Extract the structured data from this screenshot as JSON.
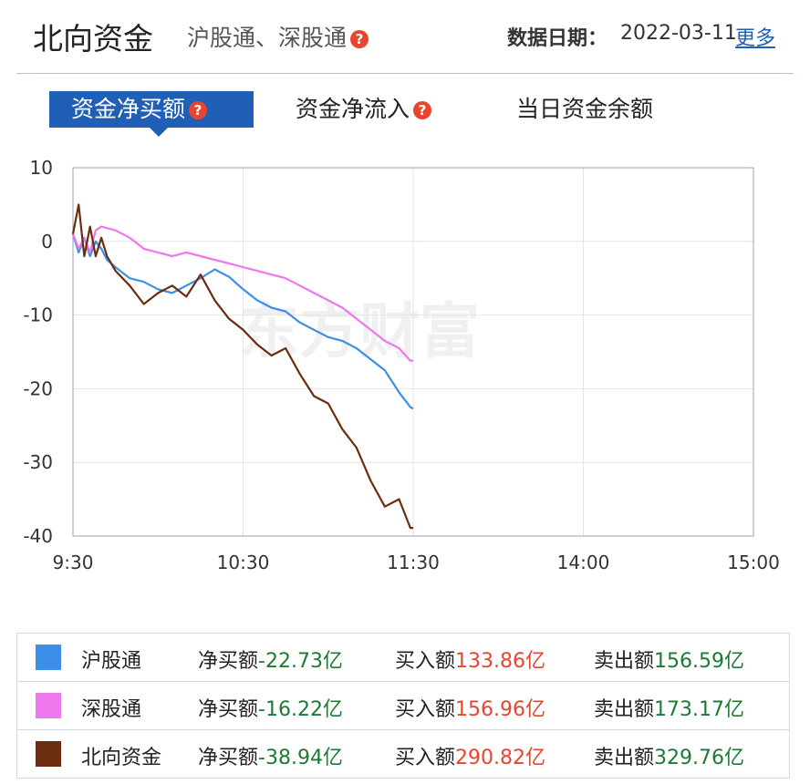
{
  "header": {
    "title": "北向资金",
    "subtitle": "沪股通、深股通",
    "help_mark": "?",
    "date_label": "数据日期：",
    "date_value": "2022-03-11",
    "more_label": "更多"
  },
  "tabs": [
    {
      "label": "资金净买额",
      "active": true
    },
    {
      "label": "资金净流入",
      "active": false
    },
    {
      "label": "当日资金余额",
      "active": false
    }
  ],
  "watermark": "东方财富",
  "chart_data": {
    "type": "line",
    "x_ticks": [
      "9:30",
      "10:30",
      "11:30",
      "14:00",
      "15:00"
    ],
    "y_ticks": [
      10,
      0,
      -10,
      -20,
      -30,
      -40
    ],
    "ylim": [
      -40,
      10
    ],
    "x_unit": "trading minutes since 9:30 (0–240)",
    "xlim": [
      0,
      240
    ],
    "grid": true,
    "series": [
      {
        "name": "沪股通",
        "color": "#3b8fe8",
        "x": [
          0,
          2,
          4,
          6,
          8,
          10,
          12,
          15,
          20,
          25,
          30,
          35,
          40,
          45,
          50,
          55,
          60,
          65,
          70,
          75,
          80,
          85,
          90,
          95,
          100,
          105,
          110,
          115,
          119,
          120
        ],
        "y": [
          1,
          -1.5,
          0.5,
          -2,
          0,
          -1,
          -2.5,
          -3.5,
          -5,
          -5.5,
          -6.5,
          -7,
          -6,
          -5,
          -3.8,
          -4.8,
          -6.5,
          -8,
          -9,
          -9.5,
          -11,
          -12,
          -13,
          -13.5,
          -14.5,
          -16,
          -17.5,
          -20.5,
          -22.5,
          -22.7
        ]
      },
      {
        "name": "深股通",
        "color": "#ee77ee",
        "x": [
          0,
          2,
          4,
          6,
          8,
          10,
          15,
          20,
          25,
          30,
          35,
          40,
          45,
          50,
          55,
          60,
          65,
          70,
          75,
          80,
          85,
          90,
          95,
          100,
          105,
          110,
          115,
          119,
          120
        ],
        "y": [
          1,
          -1,
          0.5,
          -1.5,
          1.5,
          2,
          1.5,
          0.5,
          -1,
          -1.5,
          -2,
          -1.5,
          -2,
          -2.5,
          -3,
          -3.5,
          -4,
          -4.5,
          -5,
          -6,
          -7,
          -8,
          -9,
          -10.5,
          -12,
          -13.5,
          -14.5,
          -16.2,
          -16.2
        ]
      },
      {
        "name": "北向资金",
        "color": "#6b2c0f",
        "x": [
          0,
          2,
          4,
          6,
          8,
          10,
          12,
          15,
          20,
          25,
          30,
          35,
          40,
          45,
          50,
          55,
          60,
          65,
          70,
          75,
          80,
          85,
          90,
          95,
          100,
          105,
          110,
          115,
          119,
          120
        ],
        "y": [
          1,
          5,
          -2,
          2,
          -2,
          0.5,
          -2,
          -4,
          -6,
          -8.5,
          -7,
          -6,
          -7.5,
          -4.5,
          -8,
          -10.5,
          -12,
          -14,
          -15.5,
          -14.5,
          -18,
          -21,
          -22,
          -25.5,
          -28,
          -32.5,
          -36,
          -35,
          -38.9,
          -38.9
        ]
      }
    ]
  },
  "legend": [
    {
      "name": "沪股通",
      "color": "#3b8fe8",
      "net_label": "净买额",
      "net_value": "-22.73亿",
      "buy_label": "买入额",
      "buy_value": "133.86亿",
      "sell_label": "卖出额",
      "sell_value": "156.59亿"
    },
    {
      "name": "深股通",
      "color": "#ee77ee",
      "net_label": "净买额",
      "net_value": "-16.22亿",
      "buy_label": "买入额",
      "buy_value": "156.96亿",
      "sell_label": "卖出额",
      "sell_value": "173.17亿"
    },
    {
      "name": "北向资金",
      "color": "#6b2c0f",
      "net_label": "净买额",
      "net_value": "-38.94亿",
      "buy_label": "买入额",
      "buy_value": "290.82亿",
      "sell_label": "卖出额",
      "sell_value": "329.76亿"
    }
  ]
}
